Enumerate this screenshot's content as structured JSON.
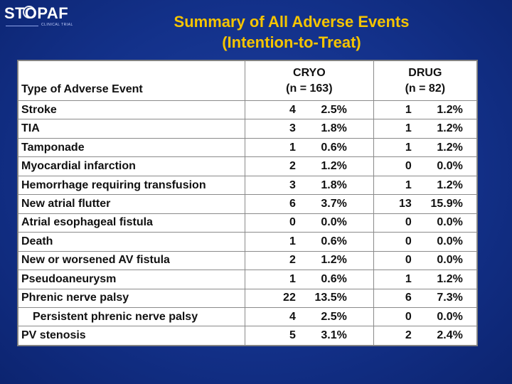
{
  "logo": {
    "main": "STOPAF",
    "sub": "CLINICAL TRIAL"
  },
  "title": {
    "line1": "Summary of All Adverse Events",
    "line2": "(Intention-to-Treat)"
  },
  "table": {
    "header": {
      "type": "Type of Adverse Event",
      "cryo_name": "CRYO",
      "cryo_n": "(n = 163)",
      "drug_name": "DRUG",
      "drug_n": "(n = 82)"
    },
    "rows": [
      {
        "event": "Stroke",
        "cryo_n": "4",
        "cryo_pct": "2.5%",
        "drug_n": "1",
        "drug_pct": "1.2%"
      },
      {
        "event": "TIA",
        "cryo_n": "3",
        "cryo_pct": "1.8%",
        "drug_n": "1",
        "drug_pct": "1.2%"
      },
      {
        "event": "Tamponade",
        "cryo_n": "1",
        "cryo_pct": "0.6%",
        "drug_n": "1",
        "drug_pct": "1.2%"
      },
      {
        "event": "Myocardial infarction",
        "cryo_n": "2",
        "cryo_pct": "1.2%",
        "drug_n": "0",
        "drug_pct": "0.0%"
      },
      {
        "event": "Hemorrhage requiring transfusion",
        "cryo_n": "3",
        "cryo_pct": "1.8%",
        "drug_n": "1",
        "drug_pct": "1.2%"
      },
      {
        "event": "New atrial flutter",
        "cryo_n": "6",
        "cryo_pct": "3.7%",
        "drug_n": "13",
        "drug_pct": "15.9%"
      },
      {
        "event": "Atrial esophageal fistula",
        "cryo_n": "0",
        "cryo_pct": "0.0%",
        "drug_n": "0",
        "drug_pct": "0.0%"
      },
      {
        "event": "Death",
        "cryo_n": "1",
        "cryo_pct": "0.6%",
        "drug_n": "0",
        "drug_pct": "0.0%"
      },
      {
        "event": "New or worsened AV fistula",
        "cryo_n": "2",
        "cryo_pct": "1.2%",
        "drug_n": "0",
        "drug_pct": "0.0%"
      },
      {
        "event": "Pseudoaneurysm",
        "cryo_n": "1",
        "cryo_pct": "0.6%",
        "drug_n": "1",
        "drug_pct": "1.2%"
      },
      {
        "event": "Phrenic nerve palsy",
        "cryo_n": "22",
        "cryo_pct": "13.5%",
        "drug_n": "6",
        "drug_pct": "7.3%"
      },
      {
        "event": "Persistent phrenic nerve palsy",
        "cryo_n": "4",
        "cryo_pct": "2.5%",
        "drug_n": "0",
        "drug_pct": "0.0%",
        "indent": true
      },
      {
        "event": "PV stenosis",
        "cryo_n": "5",
        "cryo_pct": "3.1%",
        "drug_n": "2",
        "drug_pct": "2.4%"
      }
    ]
  }
}
